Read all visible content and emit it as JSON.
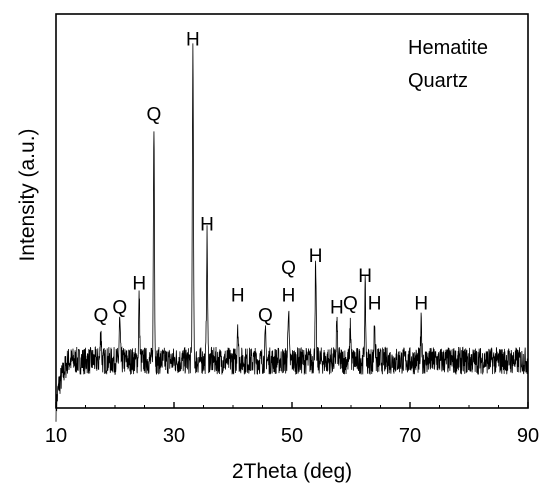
{
  "chart_data": {
    "type": "line",
    "xlabel": "2Theta (deg)",
    "ylabel": "Intensity (a.u.)",
    "xlim": [
      10,
      90
    ],
    "ylim": [
      0,
      100
    ],
    "x_ticks": [
      "10",
      "30",
      "50",
      "70",
      "90"
    ],
    "y_ticks_labeled": false,
    "grid": false,
    "legend": {
      "position": "top-right",
      "entries": [
        "Hematite",
        "Quartz"
      ]
    },
    "series": [
      {
        "color": "#000000",
        "baseline": 12,
        "noise_amplitude": 3.5,
        "low_angle_ramp": [
          [
            10,
            0
          ],
          [
            10.5,
            6
          ],
          [
            12,
            12
          ]
        ],
        "peaks": [
          {
            "x": 17.6,
            "y": 20
          },
          {
            "x": 20.8,
            "y": 22
          },
          {
            "x": 24.1,
            "y": 28
          },
          {
            "x": 26.6,
            "y": 71
          },
          {
            "x": 33.2,
            "y": 90
          },
          {
            "x": 35.6,
            "y": 43
          },
          {
            "x": 40.8,
            "y": 22
          },
          {
            "x": 45.5,
            "y": 18
          },
          {
            "x": 49.4,
            "y": 26
          },
          {
            "x": 54.0,
            "y": 35
          },
          {
            "x": 57.6,
            "y": 22
          },
          {
            "x": 59.9,
            "y": 21
          },
          {
            "x": 62.4,
            "y": 30
          },
          {
            "x": 64.0,
            "y": 22
          },
          {
            "x": 71.9,
            "y": 21
          }
        ]
      }
    ],
    "annotations": [
      {
        "text": "Q",
        "x": 17.6,
        "y": 21
      },
      {
        "text": "Q",
        "x": 20.8,
        "y": 23
      },
      {
        "text": "H",
        "x": 24.1,
        "y": 29
      },
      {
        "text": "Q",
        "x": 26.6,
        "y": 72
      },
      {
        "text": "H",
        "x": 33.2,
        "y": 91
      },
      {
        "text": "H",
        "x": 35.6,
        "y": 44
      },
      {
        "text": "H",
        "x": 40.8,
        "y": 26
      },
      {
        "text": "Q",
        "x": 45.5,
        "y": 21
      },
      {
        "text": "H",
        "x": 49.4,
        "y": 26
      },
      {
        "text": "Q",
        "x": 49.4,
        "y": 33
      },
      {
        "text": "H",
        "x": 54.0,
        "y": 36
      },
      {
        "text": "H",
        "x": 57.6,
        "y": 23
      },
      {
        "text": "Q",
        "x": 59.9,
        "y": 24
      },
      {
        "text": "H",
        "x": 62.4,
        "y": 31
      },
      {
        "text": "H",
        "x": 64.0,
        "y": 24
      },
      {
        "text": "H",
        "x": 71.9,
        "y": 24
      }
    ]
  }
}
